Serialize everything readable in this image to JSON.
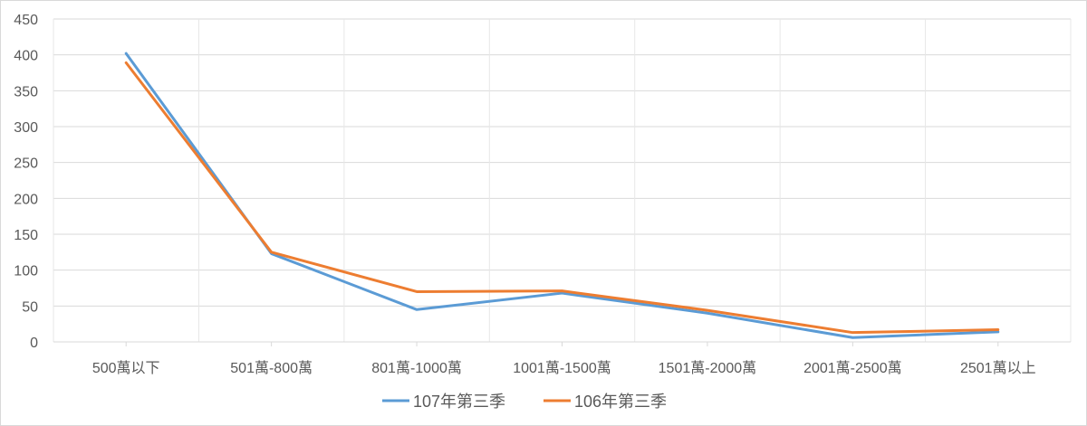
{
  "chart_data": {
    "type": "line",
    "title": "",
    "xlabel": "",
    "ylabel": "",
    "categories": [
      "500萬以下",
      "501萬-800萬",
      "801萬-1000萬",
      "1001萬-1500萬",
      "1501萬-2000萬",
      "2001萬-2500萬",
      "2501萬以上"
    ],
    "ylim": [
      0,
      450
    ],
    "yticks": [
      "0",
      "50",
      "100",
      "150",
      "200",
      "250",
      "300",
      "350",
      "400",
      "450"
    ],
    "grid": true,
    "legend_position": "bottom",
    "series": [
      {
        "name": "107年第三季",
        "color": "#5b9bd5",
        "values": [
          402,
          123,
          45,
          68,
          40,
          6,
          14
        ]
      },
      {
        "name": "106年第三季",
        "color": "#ed7d31",
        "values": [
          389,
          125,
          70,
          71,
          44,
          13,
          17
        ]
      }
    ]
  }
}
